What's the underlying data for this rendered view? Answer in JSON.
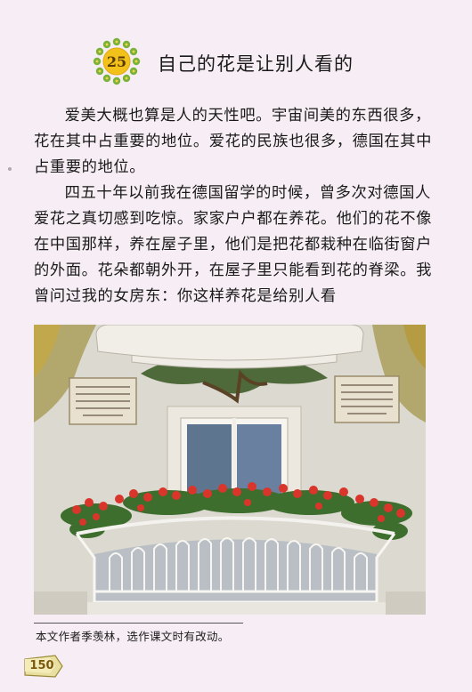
{
  "lesson": {
    "number": "25",
    "title": "自己的花是让别人看的"
  },
  "paragraphs": [
    "爱美大概也算是人的天性吧。宇宙间美的东西很多，花在其中占重要的地位。爱花的民族也很多，德国在其中占重要的地位。",
    "四五十年以前我在德国留学的时候，曾多次对德国人爱花之真切感到吃惊。家家户户都在养花。他们的花不像在中国那样，养在屋子里，他们是把花都栽种在临街窗户的外面。花朵都朝外开，在屋子里只能看到花的脊梁。我曾问过我的女房东：你这样养花是给别人看"
  ],
  "footnote": "本文作者季羡林，选作课文时有改动。",
  "page_number": "150",
  "colors": {
    "page_background": "#f6eef4",
    "badge_petals": "#7bb33a",
    "badge_center": "#f2c21a",
    "page_tab": "#e8dfa0"
  }
}
